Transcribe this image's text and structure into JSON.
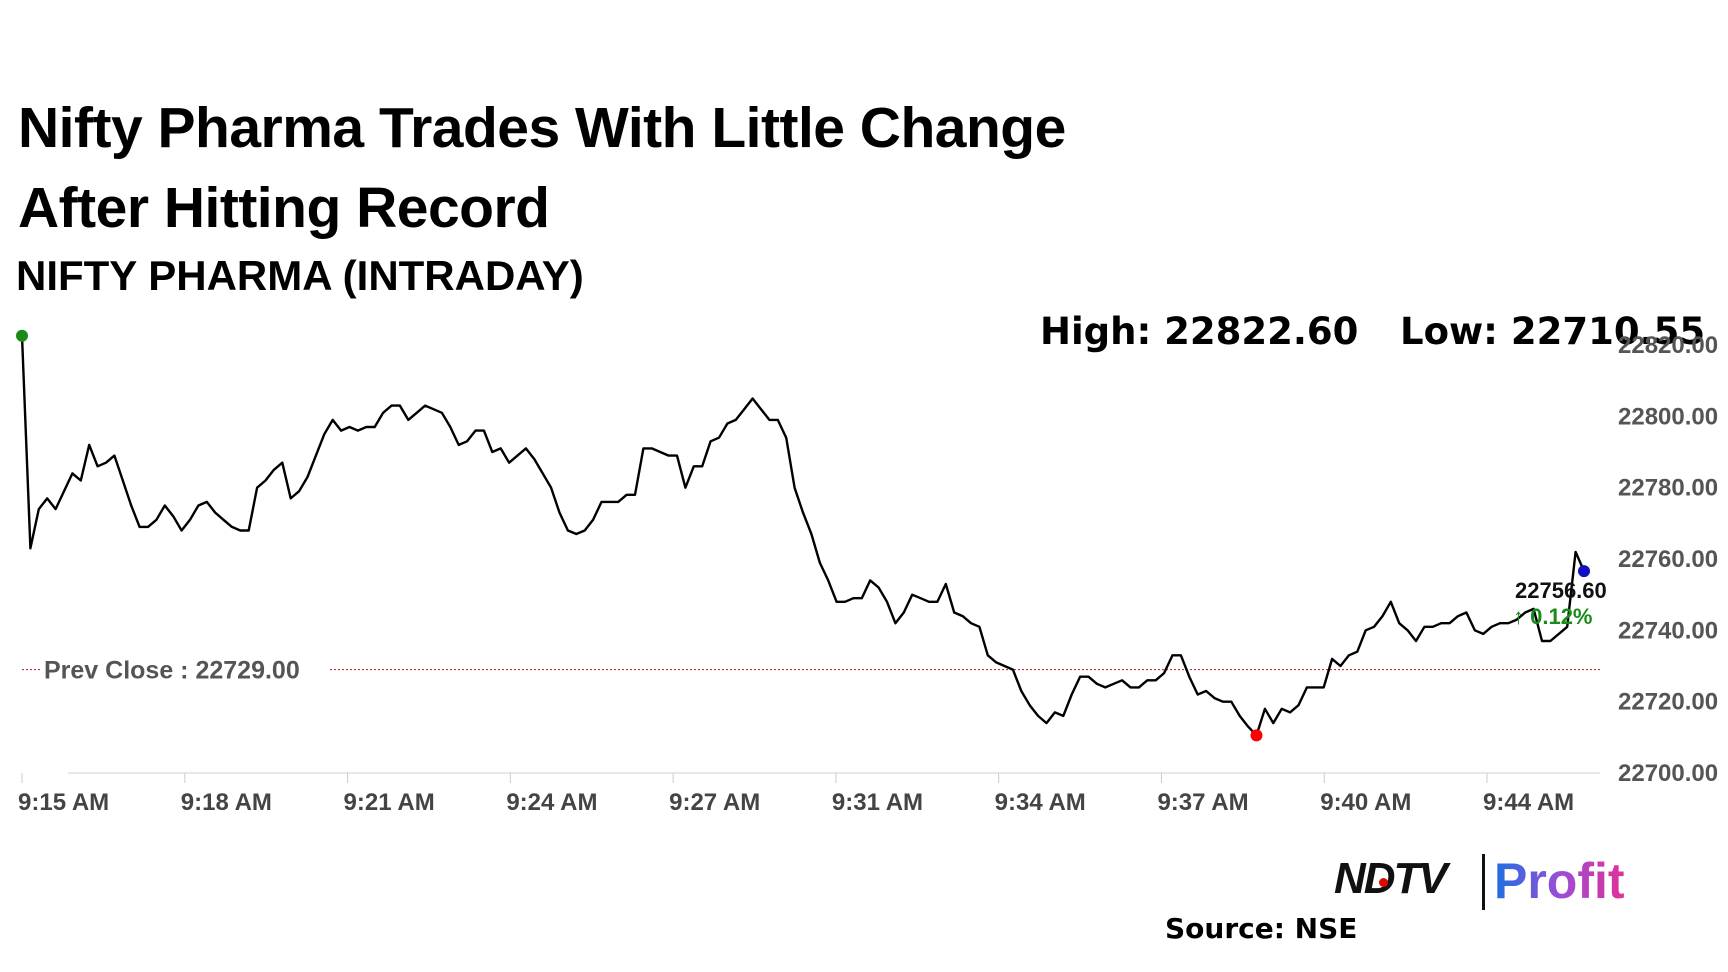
{
  "header": {
    "title_line1": "Nifty Pharma Trades With Little Change",
    "title_line2": "After Hitting Record",
    "subtitle": "NIFTY PHARMA (INTRADAY)"
  },
  "stats": {
    "high": "High: 22822.60",
    "low": "Low: 22710.55"
  },
  "footer": {
    "brand_left": "NDTV",
    "brand_right": "Profit",
    "source": "Source: NSE"
  },
  "colors": {
    "line": "#000000",
    "prev_close": "#b33a3a",
    "high_marker": "#1a8a1a",
    "low_marker": "#ff0000",
    "last_marker": "#1010c0",
    "change_up": "#1a8a1a"
  },
  "chart_data": {
    "type": "line",
    "ylim": [
      22700,
      22820
    ],
    "y_ticks": [
      "22700.00",
      "22720.00",
      "22740.00",
      "22760.00",
      "22780.00",
      "22800.00",
      "22820.00"
    ],
    "x_tick_labels": [
      "9:15 AM",
      "9:18 AM",
      "9:21 AM",
      "9:24 AM",
      "9:27 AM",
      "9:31 AM",
      "9:34 AM",
      "9:37 AM",
      "9:40 AM",
      "9:44 AM"
    ],
    "prev_close": 22729.0,
    "prev_close_label": "Prev Close : 22729.00",
    "last_value_label": "22756.60",
    "change_label": "↑ 0.12%",
    "high": 22822.6,
    "low": 22710.55,
    "values": [
      22822.6,
      22763,
      22774,
      22777,
      22774,
      22779,
      22784,
      22782,
      22792,
      22786,
      22787,
      22789,
      22782,
      22775,
      22769,
      22769,
      22771,
      22775,
      22772,
      22768,
      22771,
      22775,
      22776,
      22773,
      22771,
      22769,
      22768,
      22768,
      22780,
      22782,
      22785,
      22787,
      22777,
      22779,
      22783,
      22789,
      22795,
      22799,
      22796,
      22797,
      22796,
      22797,
      22797,
      22801,
      22803,
      22803,
      22799,
      22801,
      22803,
      22802,
      22801,
      22797,
      22792,
      22793,
      22796,
      22796,
      22790,
      22791,
      22787,
      22789,
      22791,
      22788,
      22784,
      22780,
      22773,
      22768,
      22767,
      22768,
      22771,
      22776,
      22776,
      22776,
      22778,
      22778,
      22791,
      22791,
      22790,
      22789,
      22789,
      22780,
      22786,
      22786,
      22793,
      22794,
      22798,
      22799,
      22802,
      22805,
      22802,
      22799,
      22799,
      22794,
      22780,
      22773,
      22767,
      22759,
      22754,
      22748,
      22748,
      22749,
      22749,
      22754,
      22752,
      22748,
      22742,
      22745,
      22750,
      22749,
      22748,
      22748,
      22753,
      22745,
      22744,
      22742,
      22741,
      22733,
      22731,
      22730,
      22729,
      22723,
      22719,
      22716,
      22714,
      22717,
      22716,
      22722,
      22727,
      22727,
      22725,
      22724,
      22725,
      22726,
      22724,
      22724,
      22726,
      22726,
      22728,
      22733,
      22733,
      22727,
      22722,
      22723,
      22721,
      22720,
      22720,
      22716,
      22713,
      22710.55,
      22718,
      22714,
      22718,
      22717,
      22719,
      22724,
      22724,
      22724,
      22732,
      22730,
      22733,
      22734,
      22740,
      22741,
      22744,
      22748,
      22742,
      22740,
      22737,
      22741,
      22741,
      22742,
      22742,
      22744,
      22745,
      22740,
      22739,
      22741,
      22742,
      22742,
      22743,
      22745,
      22746,
      22737,
      22737,
      22739,
      22741,
      22762,
      22756.6
    ]
  }
}
